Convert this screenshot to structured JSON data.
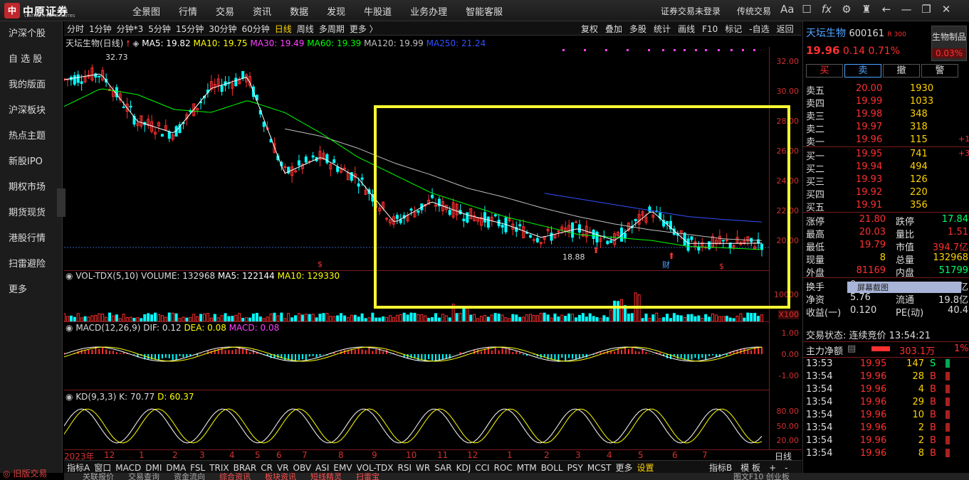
{
  "app": {
    "logo_text": "中原证券",
    "logo_sub": "CENTRAL CHINA SECURITIES",
    "menu": [
      "全景图",
      "行情",
      "交易",
      "资讯",
      "数据",
      "发现",
      "牛股道",
      "业务办理",
      "智能客服"
    ],
    "login_status": "证券交易未登录",
    "traditional_trade": "传统交易",
    "toolbar_icons": [
      "Aa",
      "bell-icon",
      "fx-icon",
      "gear-icon",
      "shirt-icon",
      "back-icon",
      "minimize-icon",
      "maximize-icon",
      "close-icon"
    ]
  },
  "sidebar": {
    "items": [
      "沪深个股",
      "自 选 股",
      "我的版面",
      "沪深板块",
      "热点主题",
      "新股IPO",
      "期权市场",
      "期货现货",
      "港股行情",
      "扫雷避险",
      "更多"
    ],
    "old_version": "旧版交易"
  },
  "chart_toolbar": {
    "periods": [
      "分时",
      "1分钟",
      "分钟*3",
      "5分钟",
      "15分钟",
      "30分钟",
      "60分钟",
      "日线",
      "周线",
      "多周期",
      "更多 〉"
    ],
    "active": "日线",
    "right_tools": [
      "复权",
      "叠加",
      "多股",
      "统计",
      "画线",
      "F10",
      "标记",
      "-自选",
      "返回"
    ]
  },
  "main_legend": {
    "name": "天坛生物(日线)",
    "ma5": "MA5: 19.82",
    "ma10": "MA10: 19.75",
    "ma30": "MA30: 19.49",
    "ma60": "MA60: 19.39",
    "ma120": "MA120: 19.99",
    "ma250": "MA250: 21.24",
    "high_label": "32.73",
    "low_label": "18.88"
  },
  "price_axis": [
    "32.00",
    "30.00",
    "28.00",
    "26.00",
    "24.00",
    "22.00",
    "20.00"
  ],
  "volume_legend": {
    "name": "VOL-TDX(5,10)",
    "volume": "VOLUME: 132968",
    "ma5": "MA5: 122144",
    "ma10": "MA10: 129330"
  },
  "volume_axis": [
    "10000",
    "X100"
  ],
  "macd_legend": {
    "name": "MACD(12,26,9)",
    "dif": "DIF: 0.12",
    "dea": "DEA: 0.08",
    "macd": "MACD: 0.08"
  },
  "macd_axis": [
    "1.00",
    "0.00",
    "-1.00"
  ],
  "kd_legend": {
    "name": "KD(9,3,3)",
    "k": "K: 70.77",
    "d": "D: 60.37"
  },
  "kd_axis": [
    "80.00",
    "50.00",
    "20.00"
  ],
  "time_axis": [
    "2023年",
    "12",
    "1",
    "2",
    "3",
    "4",
    "5",
    "6",
    "7",
    "8",
    "9",
    "10",
    "11",
    "12",
    "1",
    "2",
    "3",
    "4",
    "5",
    "6",
    "7"
  ],
  "time_axis_right": "日线",
  "indicator_tabs": [
    "指标A",
    "窗口",
    "MACD",
    "DMI",
    "DMA",
    "FSL",
    "TRIX",
    "BRAR",
    "CR",
    "VR",
    "OBV",
    "ASI",
    "EMV",
    "VOL-TDX",
    "RSI",
    "WR",
    "SAR",
    "KDJ",
    "CCI",
    "ROC",
    "MTM",
    "BOLL",
    "PSY",
    "MCST",
    "更多",
    "设置"
  ],
  "indicator_right": [
    "指标B",
    "模 板",
    "+",
    "-"
  ],
  "footer": [
    "关联报价",
    "交易查询",
    "资金流向",
    "综合资讯",
    "板块资讯",
    "短线精灵",
    "扫雷宝"
  ],
  "footer_right": "图文F10 创业板",
  "stock": {
    "name": "天坛生物",
    "code": "600161",
    "tag": "R 300",
    "sector": "生物制品",
    "sector_change": "0.03%",
    "price": "19.96",
    "change": "0.14",
    "change_pct": "0.71%"
  },
  "trade_buttons": [
    "买",
    "卖",
    "撤",
    "警"
  ],
  "order_book": {
    "asks": [
      {
        "label": "卖五",
        "price": "20.00",
        "vol": "1930",
        "delta": ""
      },
      {
        "label": "卖四",
        "price": "19.99",
        "vol": "1033",
        "delta": ""
      },
      {
        "label": "卖三",
        "price": "19.98",
        "vol": "348",
        "delta": ""
      },
      {
        "label": "卖二",
        "price": "19.97",
        "vol": "318",
        "delta": ""
      },
      {
        "label": "卖一",
        "price": "19.96",
        "vol": "115",
        "delta": "+12"
      }
    ],
    "bids": [
      {
        "label": "买一",
        "price": "19.95",
        "vol": "741",
        "delta": "+3"
      },
      {
        "label": "买二",
        "price": "19.94",
        "vol": "494",
        "delta": ""
      },
      {
        "label": "买三",
        "price": "19.93",
        "vol": "126",
        "delta": ""
      },
      {
        "label": "买四",
        "price": "19.92",
        "vol": "220",
        "delta": ""
      },
      {
        "label": "买五",
        "price": "19.91",
        "vol": "356",
        "delta": ""
      }
    ]
  },
  "stats": [
    [
      "涨停",
      "21.80",
      "跌停",
      "17.84"
    ],
    [
      "最高",
      "20.03",
      "量比",
      "1.51"
    ],
    [
      "最低",
      "19.79",
      "市值",
      "394.7亿"
    ],
    [
      "现量",
      "8",
      "总量",
      "132968"
    ],
    [
      "外盘",
      "81169",
      "内盘",
      "51799"
    ],
    [
      "换手",
      "0.",
      "",
      "35.8亿"
    ],
    [
      "净资",
      "5.76",
      "流通",
      "19.8亿"
    ],
    [
      "收益(一)",
      "0.120",
      "PE(动)",
      "40.4"
    ]
  ],
  "screenshot_tooltip": "屏幕截图",
  "trade_status": "交易状态: 连续竞价 13:54:21",
  "main_net": {
    "label": "主力净额",
    "value": "303.1万",
    "pct": "1%"
  },
  "ticks": [
    [
      "13:53",
      "19.95",
      "147",
      "S"
    ],
    [
      "13:54",
      "19.96",
      "28",
      "B"
    ],
    [
      "13:54",
      "19.96",
      "4",
      "B"
    ],
    [
      "13:54",
      "19.96",
      "29",
      "B"
    ],
    [
      "13:54",
      "19.96",
      "10",
      "B"
    ],
    [
      "13:54",
      "19.96",
      "2",
      "B"
    ],
    [
      "13:54",
      "19.96",
      "2",
      "B"
    ],
    [
      "13:54",
      "19.96",
      "8",
      "B"
    ]
  ],
  "colors": {
    "up": "#ff3030",
    "down": "#00ffff",
    "ma5": "#ffffff",
    "ma10": "#ffff00",
    "ma30": "#ff40ff",
    "ma60": "#00ff00",
    "ma120": "#c0c0c0",
    "ma250": "#3050ff",
    "highlight": "#ffff33"
  },
  "chart_data": {
    "type": "line",
    "ylim": [
      18,
      33
    ],
    "series": [
      {
        "name": "MA250",
        "values": [
          null,
          null,
          null,
          null,
          null,
          null,
          null,
          null,
          null,
          null,
          null,
          null,
          null,
          23.2,
          22.8,
          22.4,
          22.0,
          21.6,
          21.4,
          21.24
        ]
      },
      {
        "name": "MA120",
        "values": [
          null,
          null,
          null,
          null,
          null,
          null,
          27.5,
          27.0,
          26.2,
          25.2,
          24.4,
          23.5,
          22.9,
          22.2,
          21.6,
          21.1,
          20.7,
          20.4,
          20.1,
          19.99
        ]
      },
      {
        "name": "MA60",
        "values": [
          29.0,
          30.2,
          29.8,
          28.8,
          28.6,
          29.4,
          28.6,
          27.2,
          25.6,
          24.4,
          23.2,
          22.4,
          21.6,
          21.0,
          20.4,
          20.2,
          20.0,
          19.6,
          19.5,
          19.39
        ]
      },
      {
        "name": "MA5",
        "values": [
          30.8,
          31.2,
          28.0,
          27.2,
          30.2,
          31.0,
          24.5,
          25.6,
          24.2,
          21.2,
          22.6,
          21.7,
          21.1,
          20.2,
          20.8,
          20.0,
          22.0,
          19.8,
          19.8,
          19.82
        ]
      }
    ]
  }
}
